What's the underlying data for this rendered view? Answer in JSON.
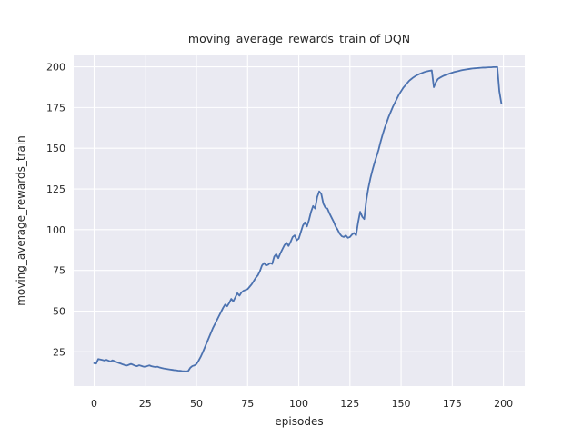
{
  "figure": {
    "title": "moving_average_rewards_train of DQN",
    "xlabel": "episodes",
    "ylabel": "moving_average_rewards_train"
  },
  "chart_data": {
    "type": "line",
    "title": "moving_average_rewards_train of DQN",
    "xlabel": "episodes",
    "ylabel": "moving_average_rewards_train",
    "x_ticks": [
      0,
      25,
      50,
      75,
      100,
      125,
      150,
      175,
      200
    ],
    "y_ticks": [
      25,
      50,
      75,
      100,
      125,
      150,
      175,
      200
    ],
    "xlim": [
      -10,
      210.4
    ],
    "ylim": [
      4,
      207
    ],
    "grid": true,
    "legend": "none",
    "style": "seaborn-darkgrid",
    "colors": {
      "line": "#4C72B0",
      "plot_background": "#EAEAF2",
      "gridline": "#FFFFFF",
      "text": "#262626",
      "figure_background": "#FFFFFF"
    },
    "series": [
      {
        "name": "moving_average_rewards_train",
        "x_start": 0,
        "x_step": 1,
        "y": [
          18.0,
          17.8,
          20.6,
          20.3,
          20.0,
          19.7,
          20.1,
          19.6,
          19.1,
          19.8,
          19.3,
          18.7,
          18.2,
          17.8,
          17.3,
          16.9,
          16.6,
          17.1,
          17.6,
          17.1,
          16.5,
          16.2,
          16.8,
          16.4,
          16.0,
          15.8,
          16.3,
          16.7,
          16.2,
          15.9,
          15.7,
          15.9,
          15.4,
          15.1,
          14.8,
          14.6,
          14.4,
          14.2,
          14.0,
          13.8,
          13.7,
          13.5,
          13.4,
          13.2,
          13.1,
          13.0,
          13.3,
          15.3,
          16.3,
          16.7,
          17.5,
          19.5,
          21.8,
          24.5,
          27.5,
          30.5,
          33.5,
          36.5,
          39.5,
          42.0,
          44.5,
          47.0,
          49.5,
          52.0,
          54.0,
          53.0,
          55.0,
          57.5,
          56.0,
          58.5,
          61.0,
          59.5,
          61.5,
          62.5,
          63.0,
          63.5,
          65.0,
          66.5,
          68.5,
          70.5,
          72.0,
          74.5,
          78.0,
          79.5,
          78.0,
          78.5,
          79.5,
          79.0,
          83.5,
          85.0,
          82.5,
          85.5,
          88.0,
          90.5,
          92.0,
          90.0,
          92.5,
          95.5,
          96.5,
          93.5,
          94.5,
          98.5,
          102.5,
          104.5,
          102.0,
          106.0,
          111.0,
          114.5,
          113.0,
          120.0,
          123.5,
          122.0,
          116.0,
          113.5,
          113.0,
          110.0,
          107.5,
          105.0,
          102.0,
          100.0,
          97.5,
          96.0,
          95.5,
          96.5,
          95.0,
          95.5,
          97.0,
          98.0,
          96.5,
          104.5,
          111.0,
          108.0,
          106.5,
          118.0,
          125.5,
          131.5,
          136.5,
          141.0,
          145.0,
          149.0,
          154.0,
          158.5,
          162.5,
          166.0,
          169.5,
          172.5,
          175.5,
          178.0,
          180.5,
          183.0,
          185.0,
          187.0,
          188.5,
          190.0,
          191.5,
          192.5,
          193.5,
          194.3,
          195.0,
          195.6,
          196.1,
          196.6,
          197.0,
          197.3,
          197.6,
          197.8,
          187.5,
          190.5,
          192.5,
          193.3,
          194.0,
          194.6,
          195.1,
          195.5,
          196.0,
          196.4,
          196.8,
          197.1,
          197.4,
          197.7,
          198.0,
          198.2,
          198.4,
          198.6,
          198.8,
          199.0,
          199.1,
          199.2,
          199.3,
          199.4,
          199.5,
          199.5,
          199.6,
          199.7,
          199.7,
          199.8,
          199.8,
          199.9,
          185.0,
          177.5
        ]
      }
    ]
  }
}
